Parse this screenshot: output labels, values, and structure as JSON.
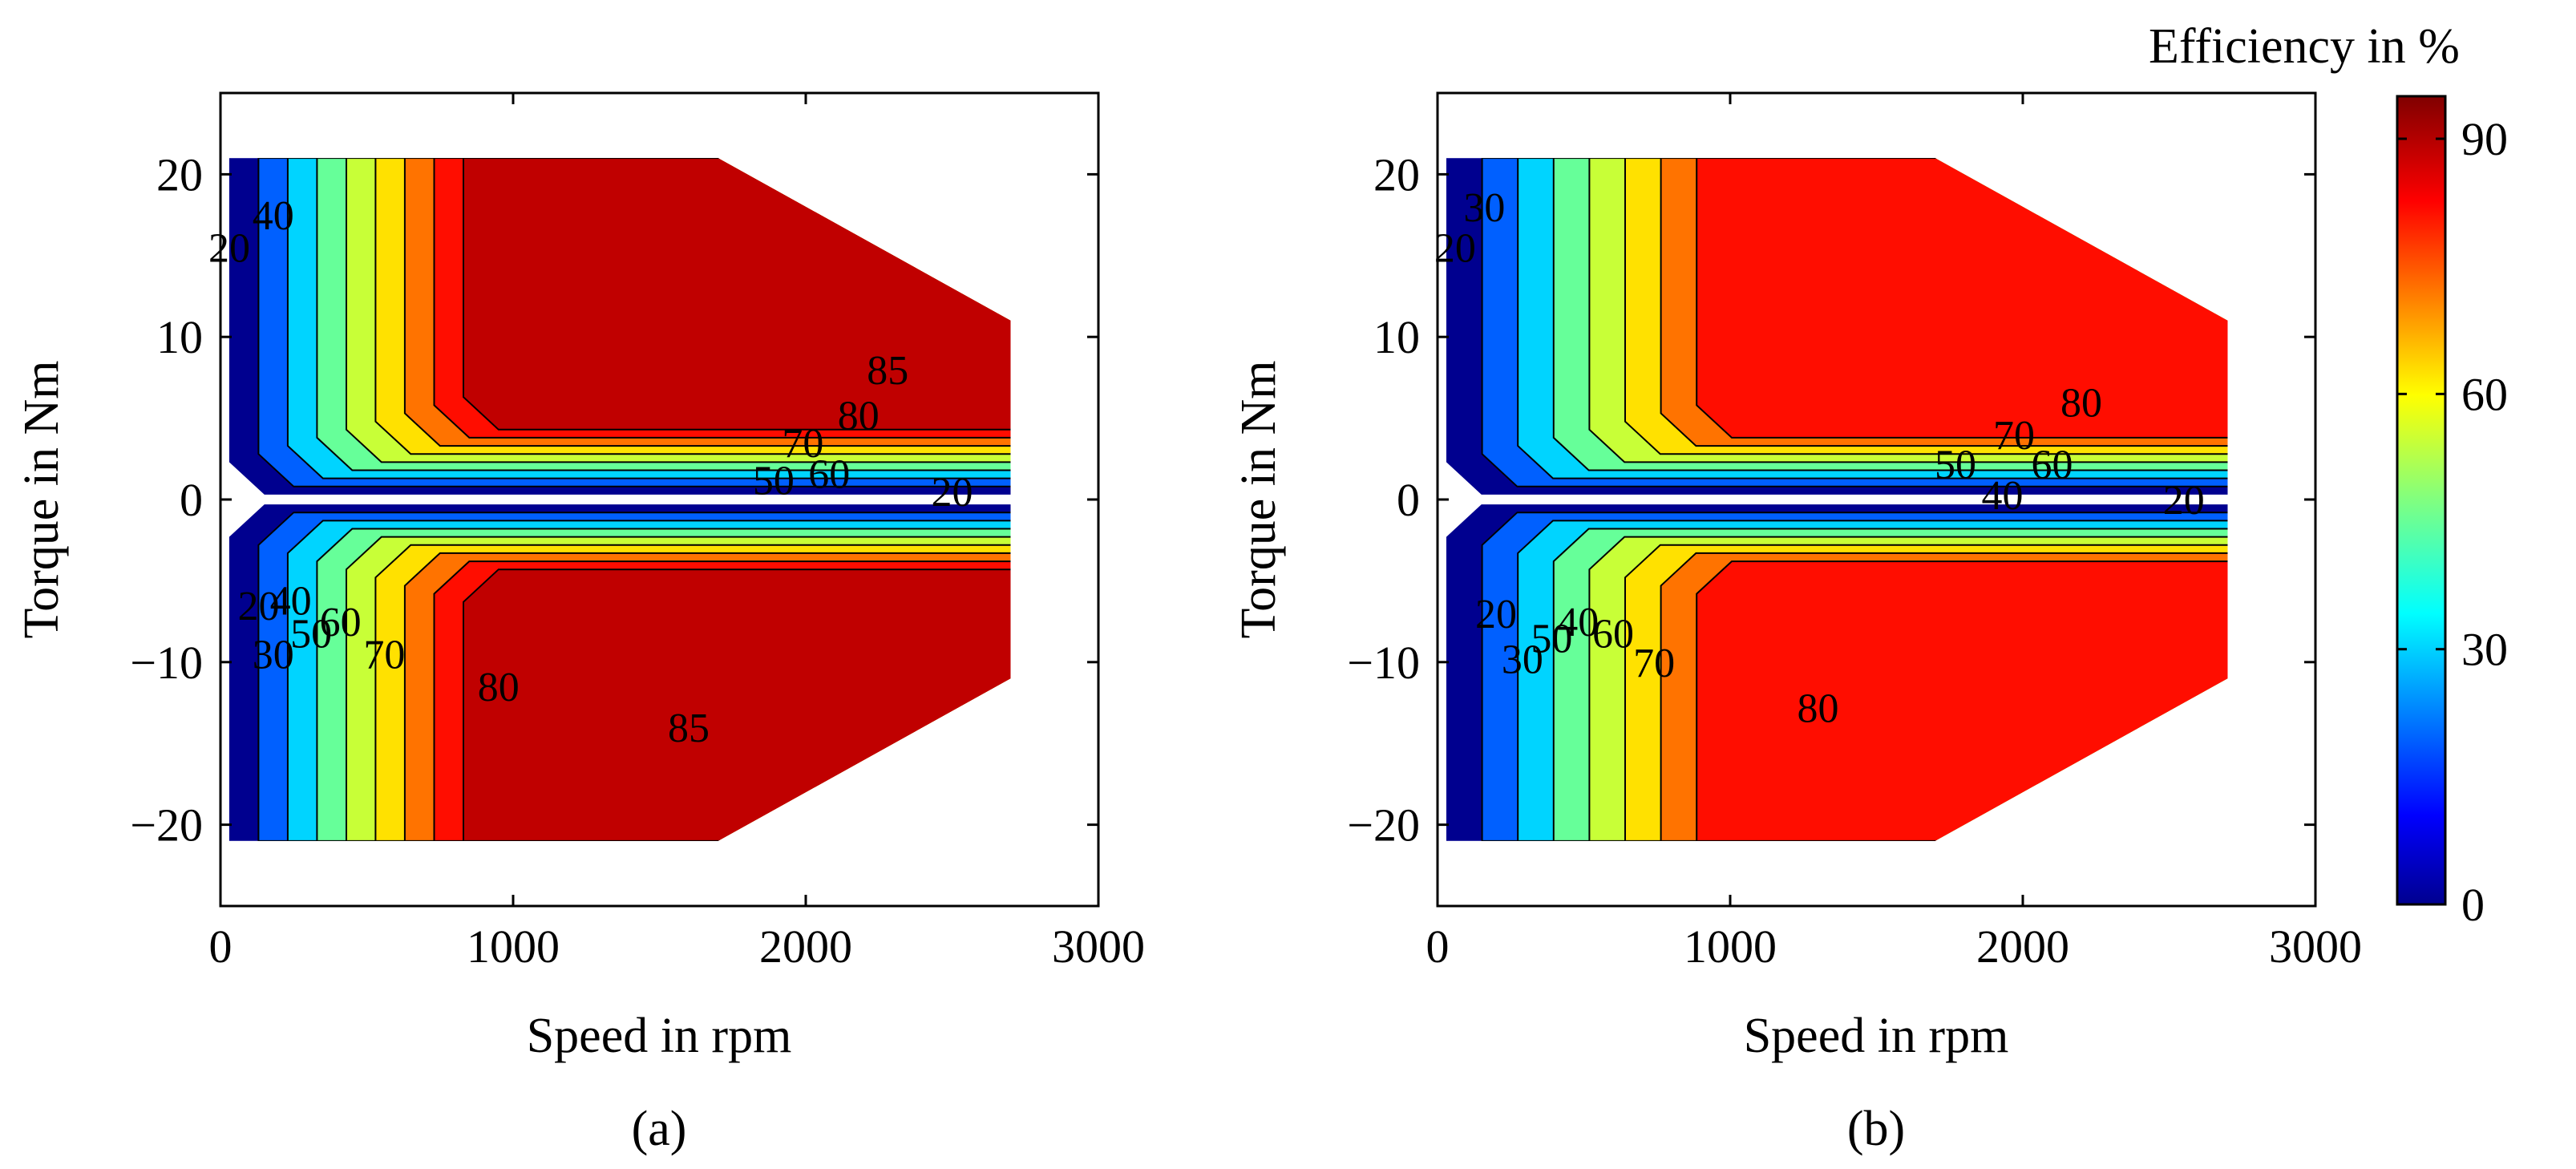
{
  "figure": {
    "colorbar": {
      "title": "Efficiency in %",
      "ticks": [
        "0",
        "30",
        "60",
        "90"
      ],
      "tick_values": [
        0,
        30,
        60,
        90
      ],
      "range": [
        0,
        95
      ]
    }
  },
  "chart_data": [
    {
      "type": "contour",
      "panel_label": "(a)",
      "xlabel": "Speed in rpm",
      "ylabel": "Torque in Nm",
      "xlim": [
        0,
        3000
      ],
      "ylim": [
        -25,
        25
      ],
      "xticks": [
        "0",
        "1000",
        "2000",
        "3000"
      ],
      "yticks": [
        "20",
        "10",
        "0",
        "−10",
        "−20"
      ],
      "ytick_values": [
        20,
        10,
        0,
        -10,
        -20
      ],
      "xtick_values": [
        0,
        1000,
        2000,
        3000
      ],
      "operating_region": {
        "speed_max": 2700,
        "torque_max": 21,
        "corner_speed_top": 1700,
        "corner_speed_bottom": 1700,
        "torque_at_max_speed": 11
      },
      "contour_levels": [
        20,
        30,
        40,
        50,
        60,
        70,
        80,
        85
      ],
      "labels": [
        {
          "text": "20",
          "x": 30,
          "y": 15.5
        },
        {
          "text": "40",
          "x": 180,
          "y": 17.5
        },
        {
          "text": "85",
          "x": 2280,
          "y": 8
        },
        {
          "text": "80",
          "x": 2180,
          "y": 5.2
        },
        {
          "text": "70",
          "x": 1990,
          "y": 3.5
        },
        {
          "text": "50",
          "x": 1890,
          "y": 1.2
        },
        {
          "text": "60",
          "x": 2080,
          "y": 1.6
        },
        {
          "text": "20",
          "x": 2500,
          "y": 0.5
        },
        {
          "text": "20",
          "x": 130,
          "y": -6.5
        },
        {
          "text": "30",
          "x": 180,
          "y": -9.5
        },
        {
          "text": "40",
          "x": 240,
          "y": -6.2
        },
        {
          "text": "50",
          "x": 310,
          "y": -8.2
        },
        {
          "text": "60",
          "x": 410,
          "y": -7.5
        },
        {
          "text": "70",
          "x": 560,
          "y": -9.5
        },
        {
          "text": "80",
          "x": 950,
          "y": -11.5
        },
        {
          "text": "85",
          "x": 1600,
          "y": -14
        }
      ]
    },
    {
      "type": "contour",
      "panel_label": "(b)",
      "xlabel": "Speed in rpm",
      "ylabel": "Torque in Nm",
      "xlim": [
        0,
        3000
      ],
      "ylim": [
        -25,
        25
      ],
      "xticks": [
        "0",
        "1000",
        "2000",
        "3000"
      ],
      "yticks": [
        "20",
        "10",
        "0",
        "−10",
        "−20"
      ],
      "ytick_values": [
        20,
        10,
        0,
        -10,
        -20
      ],
      "xtick_values": [
        0,
        1000,
        2000,
        3000
      ],
      "operating_region": {
        "speed_max": 2700,
        "torque_max": 21,
        "corner_speed_top": 1700,
        "corner_speed_bottom": 1700,
        "torque_at_max_speed": 11
      },
      "contour_levels": [
        20,
        30,
        40,
        50,
        60,
        70,
        80
      ],
      "labels": [
        {
          "text": "20",
          "x": 60,
          "y": 15.5
        },
        {
          "text": "30",
          "x": 160,
          "y": 18
        },
        {
          "text": "80",
          "x": 2200,
          "y": 6
        },
        {
          "text": "70",
          "x": 1970,
          "y": 4
        },
        {
          "text": "50",
          "x": 1770,
          "y": 2.2
        },
        {
          "text": "60",
          "x": 2100,
          "y": 2.2
        },
        {
          "text": "40",
          "x": 1930,
          "y": 0.3
        },
        {
          "text": "20",
          "x": 2550,
          "y": 0
        },
        {
          "text": "20",
          "x": 200,
          "y": -7
        },
        {
          "text": "30",
          "x": 290,
          "y": -9.8
        },
        {
          "text": "50",
          "x": 390,
          "y": -8.5
        },
        {
          "text": "40",
          "x": 480,
          "y": -7.5
        },
        {
          "text": "60",
          "x": 600,
          "y": -8.2
        },
        {
          "text": "70",
          "x": 740,
          "y": -10
        },
        {
          "text": "80",
          "x": 1300,
          "y": -12.8
        }
      ]
    }
  ]
}
